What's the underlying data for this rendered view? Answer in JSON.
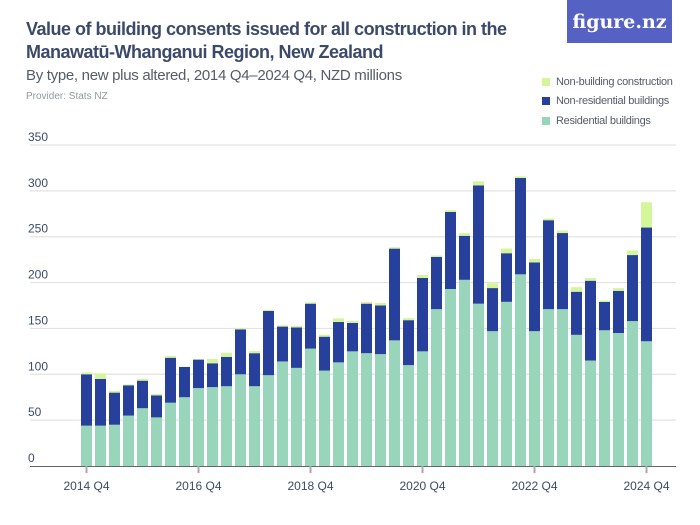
{
  "title": "Value of building consents issued for all construction in the Manawatū-Whanganui Region, New Zealand",
  "subtitle": "By type, new plus altered, 2014 Q4–2024 Q4, NZD millions",
  "provider": "Provider: Stats NZ",
  "logo": "figure.nz",
  "chart_data": {
    "type": "bar",
    "stacked": true,
    "categories": [
      "2014 Q4",
      "2015 Q1",
      "2015 Q2",
      "2015 Q3",
      "2015 Q4",
      "2016 Q1",
      "2016 Q2",
      "2016 Q3",
      "2016 Q4",
      "2017 Q1",
      "2017 Q2",
      "2017 Q3",
      "2017 Q4",
      "2018 Q1",
      "2018 Q2",
      "2018 Q3",
      "2018 Q4",
      "2019 Q1",
      "2019 Q2",
      "2019 Q3",
      "2019 Q4",
      "2020 Q1",
      "2020 Q2",
      "2020 Q3",
      "2020 Q4",
      "2021 Q1",
      "2021 Q2",
      "2021 Q3",
      "2021 Q4",
      "2022 Q1",
      "2022 Q2",
      "2022 Q3",
      "2022 Q4",
      "2023 Q1",
      "2023 Q2",
      "2023 Q3",
      "2023 Q4",
      "2024 Q1",
      "2024 Q2",
      "2024 Q3",
      "2024 Q4"
    ],
    "x_tick_labels": [
      "2014 Q4",
      "2016 Q4",
      "2018 Q4",
      "2020 Q4",
      "2022 Q4",
      "2024 Q4"
    ],
    "series": [
      {
        "name": "Residential buildings",
        "color": "#98d5bb",
        "values": [
          44,
          44,
          45,
          55,
          63,
          53,
          69,
          75,
          85,
          86,
          87,
          100,
          87,
          99,
          114,
          107,
          128,
          104,
          113,
          125,
          123,
          122,
          137,
          110,
          125,
          171,
          193,
          203,
          177,
          147,
          179,
          209,
          147,
          171,
          171,
          143,
          115,
          148,
          145,
          158,
          136
        ]
      },
      {
        "name": "Non-residential buildings",
        "color": "#27409b",
        "values": [
          56,
          51,
          35,
          33,
          30,
          24,
          49,
          33,
          31,
          26,
          32,
          49,
          36,
          70,
          38,
          44,
          49,
          37,
          44,
          31,
          54,
          53,
          100,
          49,
          80,
          57,
          84,
          48,
          129,
          47,
          53,
          105,
          75,
          97,
          83,
          47,
          87,
          31,
          46,
          72,
          124
        ]
      },
      {
        "name": "Non-building construction",
        "color": "#d5f59b",
        "values": [
          2,
          6,
          2,
          1,
          2,
          1.5,
          2,
          0.5,
          0.5,
          4.7,
          4.4,
          1.5,
          2.5,
          1.3,
          1.4,
          1.8,
          1.4,
          2.2,
          4,
          2.2,
          1.8,
          2.8,
          1.5,
          2.2,
          3.3,
          1.5,
          1.8,
          2.9,
          4.4,
          5.4,
          5.1,
          1.8,
          3.7,
          1.8,
          2.8,
          5,
          2.9,
          1.4,
          2.9,
          5.1,
          27.6
        ]
      }
    ],
    "legend_order": [
      "Non-building construction",
      "Non-residential buildings",
      "Residential buildings"
    ],
    "legend_placement": "top-right",
    "yticks": [
      0,
      50,
      100,
      150,
      200,
      250,
      300,
      350
    ],
    "ylim": [
      0,
      350
    ],
    "grid": true,
    "xlabel": "",
    "ylabel": ""
  }
}
